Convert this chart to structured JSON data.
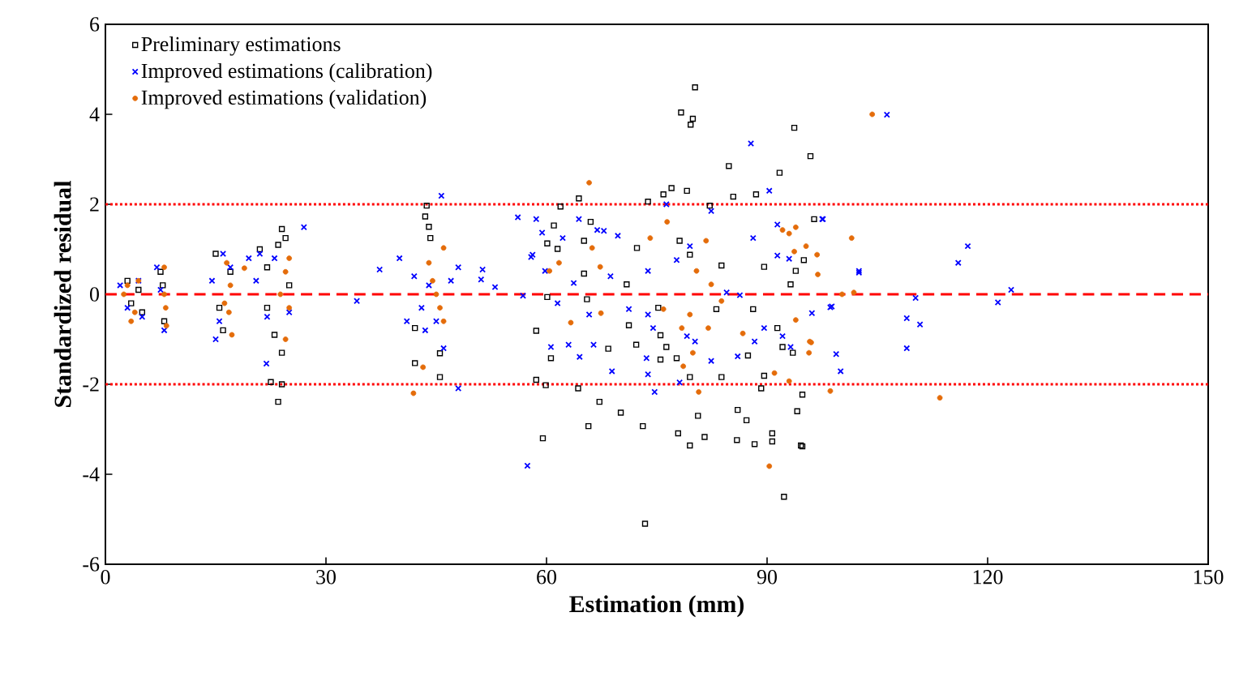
{
  "chart_data": {
    "type": "scatter",
    "xlabel": "Estimation (mm)",
    "ylabel": "Standardized residual",
    "xlim": [
      0,
      150
    ],
    "xticks": [
      0,
      30,
      60,
      90,
      120,
      150
    ],
    "ylim": [
      -6,
      6
    ],
    "yticks": [
      -6,
      -4,
      -2,
      0,
      2,
      4,
      6
    ],
    "legend": "top left",
    "grid": false,
    "ref_lines": [
      {
        "axis": "y",
        "value": 2,
        "color": "#ff0000",
        "line_style": "dotted"
      },
      {
        "axis": "y",
        "value": -2,
        "color": "#ff0000",
        "line_style": "dotted"
      },
      {
        "axis": "y",
        "value": 0,
        "color": "#ff0000",
        "line_style": "dashed"
      }
    ],
    "series": [
      {
        "name": "Preliminary estimations",
        "color": "#000000",
        "marker": "square",
        "x": [
          3,
          3.5,
          4.5,
          5,
          7.5,
          8,
          7.8,
          15,
          16,
          17,
          15.5,
          21,
          22,
          23.5,
          24,
          24.5,
          23,
          24,
          23.5,
          24,
          22.5,
          25,
          22,
          43.7,
          43.5,
          44,
          44.2,
          42.1,
          42.1,
          45.5,
          45.5,
          80.2,
          78.3,
          79.9,
          79.6,
          93.7,
          95.9,
          84.8,
          91.7,
          92.3,
          59.5,
          65.7,
          73.1,
          77.9,
          80.6,
          79.5,
          81.5,
          86,
          87.2,
          85.9,
          88.3,
          90.7,
          94.1,
          94.8,
          67.2,
          94.6,
          90.7,
          94.8,
          61.9,
          64.4,
          75.9,
          79.1,
          77,
          85.4,
          88.5,
          96.4,
          61,
          66,
          73.8,
          82.2,
          60.1,
          61.5,
          65.1,
          72.3,
          78.1,
          79.5,
          83.8,
          89.6,
          93.9,
          95,
          93.2,
          60.1,
          65.1,
          65.5,
          70.9,
          71.2,
          72.2,
          75.5,
          76.3,
          77.7,
          75.5,
          79.5,
          83.8,
          87.4,
          91.4,
          92.1,
          93.5,
          58.6,
          58.6,
          59.9,
          64.3,
          60.6,
          68.4,
          70.1,
          75.2,
          83.1,
          88.1,
          89.6,
          89.2,
          73.4
        ],
        "values": [
          0.3,
          -0.2,
          0.1,
          -0.4,
          0.5,
          -0.6,
          0.2,
          0.9,
          -0.8,
          0.5,
          -0.3,
          1.0,
          0.6,
          1.1,
          1.45,
          1.25,
          -0.9,
          -1.3,
          -2.39,
          -2.0,
          -1.95,
          0.2,
          -0.3,
          1.97,
          1.73,
          1.5,
          1.25,
          -0.75,
          -1.53,
          -1.84,
          -1.31,
          4.6,
          4.04,
          3.9,
          3.77,
          3.7,
          3.07,
          2.85,
          2.7,
          -4.5,
          -3.2,
          -2.93,
          -2.93,
          -3.09,
          -2.7,
          -3.36,
          -3.17,
          -2.57,
          -2.8,
          -3.24,
          -3.33,
          -3.09,
          -2.6,
          -3.38,
          -2.39,
          -3.36,
          -3.27,
          -2.23,
          1.95,
          2.13,
          2.22,
          2.3,
          2.36,
          2.17,
          2.22,
          1.67,
          1.53,
          1.61,
          2.06,
          1.97,
          1.13,
          1.01,
          1.19,
          1.03,
          1.19,
          0.88,
          0.64,
          0.61,
          0.52,
          0.76,
          0.22,
          -0.06,
          0.46,
          -0.11,
          0.22,
          -0.69,
          -1.12,
          -0.91,
          -1.17,
          -1.42,
          -1.45,
          -1.84,
          -1.84,
          -1.36,
          -0.75,
          -1.17,
          -1.3,
          -0.81,
          -1.9,
          -2.02,
          -2.09,
          -1.42,
          -1.21,
          -2.63,
          -0.3,
          -0.33,
          -0.33,
          -1.81,
          -2.09,
          -5.1
        ]
      },
      {
        "name": "Improved estimations (calibration)",
        "color": "#0000ff",
        "marker": "cross",
        "x": [
          2,
          3,
          4.5,
          5,
          7,
          8,
          7.5,
          14.5,
          15.5,
          16,
          15,
          17,
          20.5,
          21,
          22,
          23,
          21.9,
          27,
          25,
          19.5,
          40,
          42,
          43,
          44,
          45,
          46,
          47,
          41,
          43.5,
          48,
          45.7,
          48,
          34.2,
          37.3,
          51.1,
          106.3,
          117.3,
          116,
          123.2,
          121.4,
          110.2,
          109,
          110.8,
          109,
          102.5,
          98.6,
          99.4,
          100,
          97.6,
          56.1,
          51.3,
          53,
          56.8,
          57.4,
          58.1,
          59.8,
          87.8,
          90.3,
          97.5,
          74.7,
          78.1,
          68.9,
          64.5,
          60.6,
          63,
          66.4,
          69.7,
          59.4,
          58.6,
          64.4,
          67.8,
          76.3,
          82.4,
          79.5,
          77.7,
          73.8,
          71.2,
          73.8,
          74.5,
          73.6,
          73.8,
          79.1,
          80.2,
          82.4,
          86,
          88.3,
          89.6,
          92.1,
          93.2,
          96.1,
          98.8,
          102.5,
          91.4,
          93,
          91.4,
          88.1,
          84.5,
          86.3,
          61.5,
          65.8,
          63.7,
          68.7,
          66.9,
          62.2,
          57.9
        ],
        "values": [
          0.2,
          -0.3,
          0.3,
          -0.5,
          0.6,
          -0.8,
          0.1,
          0.3,
          -0.6,
          0.9,
          -1.0,
          0.6,
          0.3,
          0.9,
          -0.5,
          0.8,
          -1.54,
          1.49,
          -0.4,
          0.8,
          0.8,
          0.4,
          -0.3,
          0.2,
          -0.6,
          -1.2,
          0.3,
          -0.6,
          -0.8,
          0.6,
          2.19,
          -2.09,
          -0.15,
          0.55,
          0.33,
          3.99,
          1.07,
          0.7,
          0.1,
          -0.18,
          -0.08,
          -0.53,
          -0.67,
          -1.2,
          0.48,
          -0.29,
          -1.33,
          -1.71,
          1.67,
          1.71,
          0.55,
          0.16,
          -0.03,
          -3.81,
          0.88,
          0.52,
          3.35,
          2.3,
          1.67,
          -2.17,
          -1.96,
          -1.71,
          -1.39,
          -1.17,
          -1.12,
          -1.12,
          1.3,
          1.37,
          1.67,
          1.67,
          1.41,
          2.0,
          1.85,
          1.07,
          0.76,
          0.52,
          -0.33,
          -0.45,
          -0.75,
          -1.42,
          -1.78,
          -0.93,
          -1.05,
          -1.48,
          -1.38,
          -1.05,
          -0.75,
          -0.93,
          -1.17,
          -0.42,
          -0.27,
          0.52,
          0.86,
          0.79,
          1.55,
          1.25,
          0.04,
          -0.02,
          -0.2,
          -0.45,
          0.25,
          0.4,
          1.43,
          1.25,
          0.83
        ]
      },
      {
        "name": "Improved estimations (validation)",
        "color": "#e46c0a",
        "marker": "circle",
        "x": [
          2.5,
          3,
          4,
          4.5,
          3.5,
          8,
          8,
          8.2,
          8.3,
          16.5,
          17,
          16.8,
          17.2,
          16.2,
          24.5,
          25,
          25,
          24.5,
          23.8,
          18.9,
          44,
          44.5,
          45,
          45.5,
          46,
          46,
          43.2,
          41.9,
          104.3,
          113.5,
          101.5,
          101.8,
          100.2,
          98.6,
          95.7,
          96,
          96.8,
          96.9,
          90.3,
          91,
          93,
          93.9,
          95.3,
          93.7,
          65.8,
          80.7,
          78.6,
          67.3,
          60.4,
          61.7,
          66.2,
          74.1,
          76.4,
          81.7,
          80.4,
          82.4,
          83.8,
          75.9,
          79.5,
          78.4,
          82,
          86.7,
          79.9,
          67.4,
          63.3,
          95.8,
          92.1,
          93.9,
          93
        ],
        "values": [
          0,
          0.2,
          -0.4,
          0.3,
          -0.6,
          0.6,
          0,
          -0.3,
          -0.7,
          0.7,
          0.2,
          -0.4,
          -0.9,
          -0.2,
          0.5,
          0.8,
          -0.3,
          -1.0,
          0,
          0.58,
          0.7,
          0.3,
          0,
          -0.3,
          -0.6,
          1.03,
          -1.62,
          -2.2,
          4.0,
          -2.3,
          1.25,
          0.04,
          0,
          -2.15,
          -1.3,
          -1.07,
          0.88,
          0.44,
          -3.82,
          -1.75,
          -1.93,
          -0.57,
          1.07,
          0.95,
          2.48,
          -2.17,
          -1.6,
          0.61,
          0.52,
          0.7,
          1.03,
          1.25,
          1.61,
          1.19,
          0.52,
          0.22,
          -0.15,
          -0.33,
          -0.45,
          -0.75,
          -0.75,
          -0.87,
          -1.3,
          -0.42,
          -0.63,
          -1.05,
          1.43,
          1.49,
          1.35
        ]
      }
    ]
  }
}
